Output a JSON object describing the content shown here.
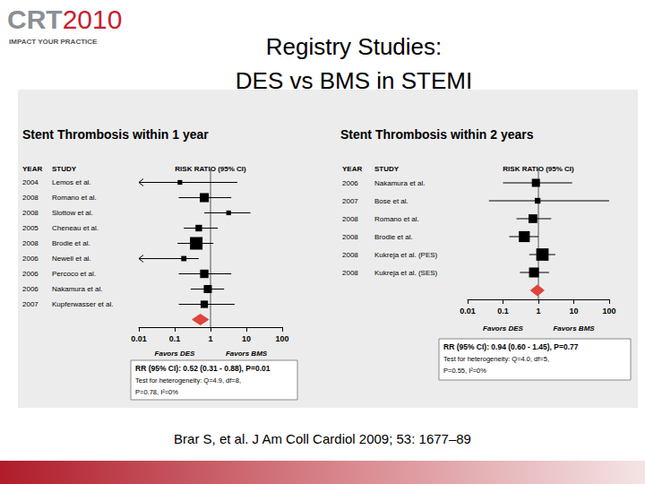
{
  "slide": {
    "title": [
      "Registry Studies:",
      "DES vs BMS in STEMI"
    ],
    "logo": {
      "main": "CRT",
      "year": "2010",
      "tagline": "IMPACT YOUR PRACTICE"
    },
    "citation": "Brar S, et al. J Am Coll Cardiol 2009; 53: 1677–89"
  },
  "chart_data": [
    {
      "type": "forest",
      "title": "Stent Thrombosis within 1 year",
      "column_headers": [
        "YEAR",
        "STUDY",
        "RISK RATIO (95% CI)"
      ],
      "years": [
        "2004",
        "2008",
        "2008",
        "2005",
        "2008",
        "2006",
        "2006",
        "2006",
        "2007"
      ],
      "categories": [
        "Lemos et al.",
        "Romano et al.",
        "Slottow et al.",
        "Cheneau et al.",
        "Brodie et al.",
        "Newell et al.",
        "Percoco et al.",
        "Nakamura et al.",
        "Kupferwasser et al."
      ],
      "values": [
        0.14,
        0.67,
        3.2,
        0.47,
        0.4,
        0.18,
        0.67,
        0.84,
        0.67
      ],
      "ci_lower": [
        0.004,
        0.13,
        0.67,
        0.18,
        0.12,
        0.004,
        0.13,
        0.28,
        0.13
      ],
      "ci_upper": [
        5.6,
        3.8,
        13,
        1.6,
        1.2,
        0.47,
        3.8,
        2.4,
        4.7
      ],
      "weights": [
        4,
        15,
        4,
        8,
        29,
        5,
        13,
        12,
        10
      ],
      "color": "#000000",
      "log": "x",
      "grid": false,
      "xlim": [
        0.01,
        100
      ],
      "xticks": [
        0.01,
        0.1,
        1,
        10,
        100
      ],
      "reference_line": 1,
      "favors": [
        "Favors DES",
        "Favors BMS"
      ],
      "summary": {
        "value": 0.52,
        "ci_lower": 0.31,
        "ci_upper": 0.88,
        "color": "#e0443a",
        "text": [
          "RR (95% CI): 0.52 (0.31 - 0.88), P=0.01",
          "Test for heterogeneity: Q=4.9, df=8,",
          "P=0.78, I²=0%"
        ]
      }
    },
    {
      "type": "forest",
      "title": "Stent Thrombosis within 2 years",
      "column_headers": [
        "YEAR",
        "STUDY",
        "RISK RATIO (95% CI)"
      ],
      "years": [
        "2006",
        "2007",
        "2008",
        "2008",
        "2008",
        "2008"
      ],
      "categories": [
        "Nakamura et al.",
        "Bose et al.",
        "Romano et al.",
        "Brodie et al.",
        "Kukreja et al. (PES)",
        "Kukreja et al. (SES)"
      ],
      "values": [
        0.85,
        0.95,
        0.7,
        0.4,
        1.3,
        0.75
      ],
      "ci_lower": [
        0.1,
        0.04,
        0.24,
        0.15,
        0.55,
        0.3
      ],
      "ci_upper": [
        9,
        100,
        2.3,
        1.0,
        3,
        2
      ],
      "weights": [
        12,
        6,
        14,
        22,
        28,
        18
      ],
      "color": "#000000",
      "log": "x",
      "grid": false,
      "xlim": [
        0.01,
        100
      ],
      "xticks": [
        0.01,
        0.1,
        1,
        10,
        100
      ],
      "reference_line": 1,
      "favors": [
        "Favors DES",
        "Favors BMS"
      ],
      "summary": {
        "value": 0.94,
        "ci_lower": 0.6,
        "ci_upper": 1.45,
        "color": "#e0443a",
        "text": [
          "RR (95% CI): 0.94 (0.60 - 1.45), P=0.77",
          "Test for heterogeneity: Q=4.0, df=5,",
          "P=0.55, I²=0%"
        ]
      }
    }
  ]
}
